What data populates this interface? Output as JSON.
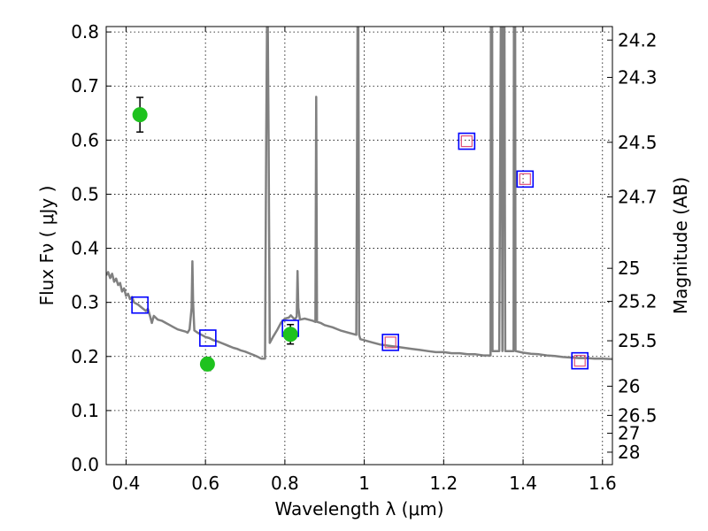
{
  "chart_data": {
    "type": "scatter",
    "xlabel": "Wavelength  λ (μm)",
    "ylabel": "Flux  Fν  ( μJy )",
    "ylabel_right": "Magnitude (AB)",
    "xlim": [
      0.35,
      1.625
    ],
    "ylim": [
      0.0,
      0.81
    ],
    "x_ticks": [
      0.4,
      0.6,
      0.8,
      1.0,
      1.2,
      1.4,
      1.6
    ],
    "x_tick_labels": [
      "0.4",
      "0.6",
      "0.8",
      "1",
      "1.2",
      "1.4",
      "1.6"
    ],
    "y_ticks": [
      0.0,
      0.1,
      0.2,
      0.3,
      0.4,
      0.5,
      0.6,
      0.7,
      0.8
    ],
    "y_tick_labels": [
      "0.0",
      "0.1",
      "0.2",
      "0.3",
      "0.4",
      "0.5",
      "0.6",
      "0.7",
      "0.8"
    ],
    "magnitude_ticks": [
      {
        "label": "24.2",
        "flux": 0.785
      },
      {
        "label": "24.3",
        "flux": 0.716
      },
      {
        "label": "24.5",
        "flux": 0.596
      },
      {
        "label": "24.7",
        "flux": 0.495
      },
      {
        "label": "25",
        "flux": 0.363
      },
      {
        "label": "25.2",
        "flux": 0.302
      },
      {
        "label": "25.5",
        "flux": 0.229
      },
      {
        "label": "26",
        "flux": 0.145
      },
      {
        "label": "26.5",
        "flux": 0.091
      },
      {
        "label": "27",
        "flux": 0.058
      },
      {
        "label": "28",
        "flux": 0.023
      }
    ],
    "grid": true,
    "series": [
      {
        "kind": "line",
        "color": "#808080",
        "points": [
          [
            0.35,
            0.35
          ],
          [
            0.355,
            0.356
          ],
          [
            0.36,
            0.345
          ],
          [
            0.365,
            0.353
          ],
          [
            0.37,
            0.338
          ],
          [
            0.375,
            0.344
          ],
          [
            0.38,
            0.332
          ],
          [
            0.385,
            0.336
          ],
          [
            0.39,
            0.32
          ],
          [
            0.395,
            0.326
          ],
          [
            0.4,
            0.312
          ],
          [
            0.405,
            0.316
          ],
          [
            0.41,
            0.306
          ],
          [
            0.415,
            0.31
          ],
          [
            0.42,
            0.3
          ],
          [
            0.43,
            0.296
          ],
          [
            0.44,
            0.29
          ],
          [
            0.45,
            0.284
          ],
          [
            0.455,
            0.288
          ],
          [
            0.46,
            0.276
          ],
          [
            0.465,
            0.262
          ],
          [
            0.47,
            0.275
          ],
          [
            0.48,
            0.268
          ],
          [
            0.49,
            0.266
          ],
          [
            0.5,
            0.262
          ],
          [
            0.51,
            0.258
          ],
          [
            0.52,
            0.254
          ],
          [
            0.53,
            0.25
          ],
          [
            0.54,
            0.248
          ],
          [
            0.55,
            0.246
          ],
          [
            0.555,
            0.244
          ],
          [
            0.56,
            0.25
          ],
          [
            0.565,
            0.29
          ],
          [
            0.567,
            0.376
          ],
          [
            0.569,
            0.3
          ],
          [
            0.572,
            0.248
          ],
          [
            0.58,
            0.244
          ],
          [
            0.59,
            0.24
          ],
          [
            0.6,
            0.236
          ],
          [
            0.61,
            0.234
          ],
          [
            0.62,
            0.23
          ],
          [
            0.63,
            0.228
          ],
          [
            0.64,
            0.225
          ],
          [
            0.65,
            0.222
          ],
          [
            0.66,
            0.219
          ],
          [
            0.67,
            0.216
          ],
          [
            0.68,
            0.214
          ],
          [
            0.69,
            0.211
          ],
          [
            0.7,
            0.209
          ],
          [
            0.71,
            0.206
          ],
          [
            0.72,
            0.203
          ],
          [
            0.73,
            0.2
          ],
          [
            0.74,
            0.196
          ],
          [
            0.75,
            0.196
          ],
          [
            0.753,
            0.6
          ],
          [
            0.755,
            0.81
          ],
          [
            0.757,
            0.81
          ],
          [
            0.759,
            0.6
          ],
          [
            0.762,
            0.225
          ],
          [
            0.77,
            0.236
          ],
          [
            0.78,
            0.248
          ],
          [
            0.79,
            0.262
          ],
          [
            0.8,
            0.27
          ],
          [
            0.81,
            0.272
          ],
          [
            0.815,
            0.276
          ],
          [
            0.82,
            0.272
          ],
          [
            0.825,
            0.268
          ],
          [
            0.83,
            0.274
          ],
          [
            0.832,
            0.358
          ],
          [
            0.834,
            0.29
          ],
          [
            0.838,
            0.268
          ],
          [
            0.85,
            0.27
          ],
          [
            0.86,
            0.268
          ],
          [
            0.87,
            0.266
          ],
          [
            0.877,
            0.264
          ],
          [
            0.879,
            0.68
          ],
          [
            0.881,
            0.264
          ],
          [
            0.89,
            0.262
          ],
          [
            0.9,
            0.258
          ],
          [
            0.92,
            0.254
          ],
          [
            0.94,
            0.248
          ],
          [
            0.96,
            0.244
          ],
          [
            0.98,
            0.24
          ],
          [
            0.983,
            0.81
          ],
          [
            0.985,
            0.81
          ],
          [
            0.987,
            0.24
          ],
          [
            0.99,
            0.232
          ],
          [
            1.0,
            0.23
          ],
          [
            1.02,
            0.226
          ],
          [
            1.04,
            0.222
          ],
          [
            1.06,
            0.22
          ],
          [
            1.08,
            0.218
          ],
          [
            1.1,
            0.216
          ],
          [
            1.12,
            0.214
          ],
          [
            1.14,
            0.212
          ],
          [
            1.16,
            0.21
          ],
          [
            1.18,
            0.208
          ],
          [
            1.2,
            0.208
          ],
          [
            1.22,
            0.206
          ],
          [
            1.24,
            0.206
          ],
          [
            1.26,
            0.204
          ],
          [
            1.28,
            0.204
          ],
          [
            1.3,
            0.202
          ],
          [
            1.318,
            0.202
          ],
          [
            1.319,
            0.81
          ],
          [
            1.322,
            0.81
          ],
          [
            1.323,
            0.21
          ],
          [
            1.34,
            0.21
          ],
          [
            1.344,
            0.81
          ],
          [
            1.346,
            0.81
          ],
          [
            1.348,
            0.21
          ],
          [
            1.35,
            0.81
          ],
          [
            1.353,
            0.81
          ],
          [
            1.355,
            0.21
          ],
          [
            1.37,
            0.21
          ],
          [
            1.376,
            0.21
          ],
          [
            1.377,
            0.81
          ],
          [
            1.38,
            0.81
          ],
          [
            1.381,
            0.21
          ],
          [
            1.4,
            0.207
          ],
          [
            1.42,
            0.205
          ],
          [
            1.44,
            0.204
          ],
          [
            1.46,
            0.202
          ],
          [
            1.48,
            0.201
          ],
          [
            1.5,
            0.199
          ],
          [
            1.52,
            0.198
          ],
          [
            1.54,
            0.197
          ],
          [
            1.56,
            0.197
          ],
          [
            1.58,
            0.196
          ],
          [
            1.6,
            0.196
          ],
          [
            1.625,
            0.195
          ]
        ]
      },
      {
        "kind": "errorbar-circle",
        "color": "#1ec21e",
        "points": [
          {
            "x": 0.435,
            "y": 0.647,
            "yerr": 0.032
          },
          {
            "x": 0.605,
            "y": 0.186,
            "yerr": 0.012
          },
          {
            "x": 0.814,
            "y": 0.241,
            "yerr": 0.018
          }
        ]
      },
      {
        "kind": "open-square",
        "color": "#0000ff",
        "points": [
          {
            "x": 0.435,
            "y": 0.295
          },
          {
            "x": 0.606,
            "y": 0.234
          },
          {
            "x": 0.814,
            "y": 0.252
          },
          {
            "x": 1.066,
            "y": 0.226
          },
          {
            "x": 1.258,
            "y": 0.598
          },
          {
            "x": 1.405,
            "y": 0.528
          },
          {
            "x": 1.543,
            "y": 0.192
          }
        ]
      },
      {
        "kind": "small-open-square",
        "color": "#e0507a",
        "points": [
          {
            "x": 1.066,
            "y": 0.226
          },
          {
            "x": 1.258,
            "y": 0.598
          },
          {
            "x": 1.405,
            "y": 0.528
          },
          {
            "x": 1.543,
            "y": 0.192
          }
        ]
      }
    ]
  }
}
